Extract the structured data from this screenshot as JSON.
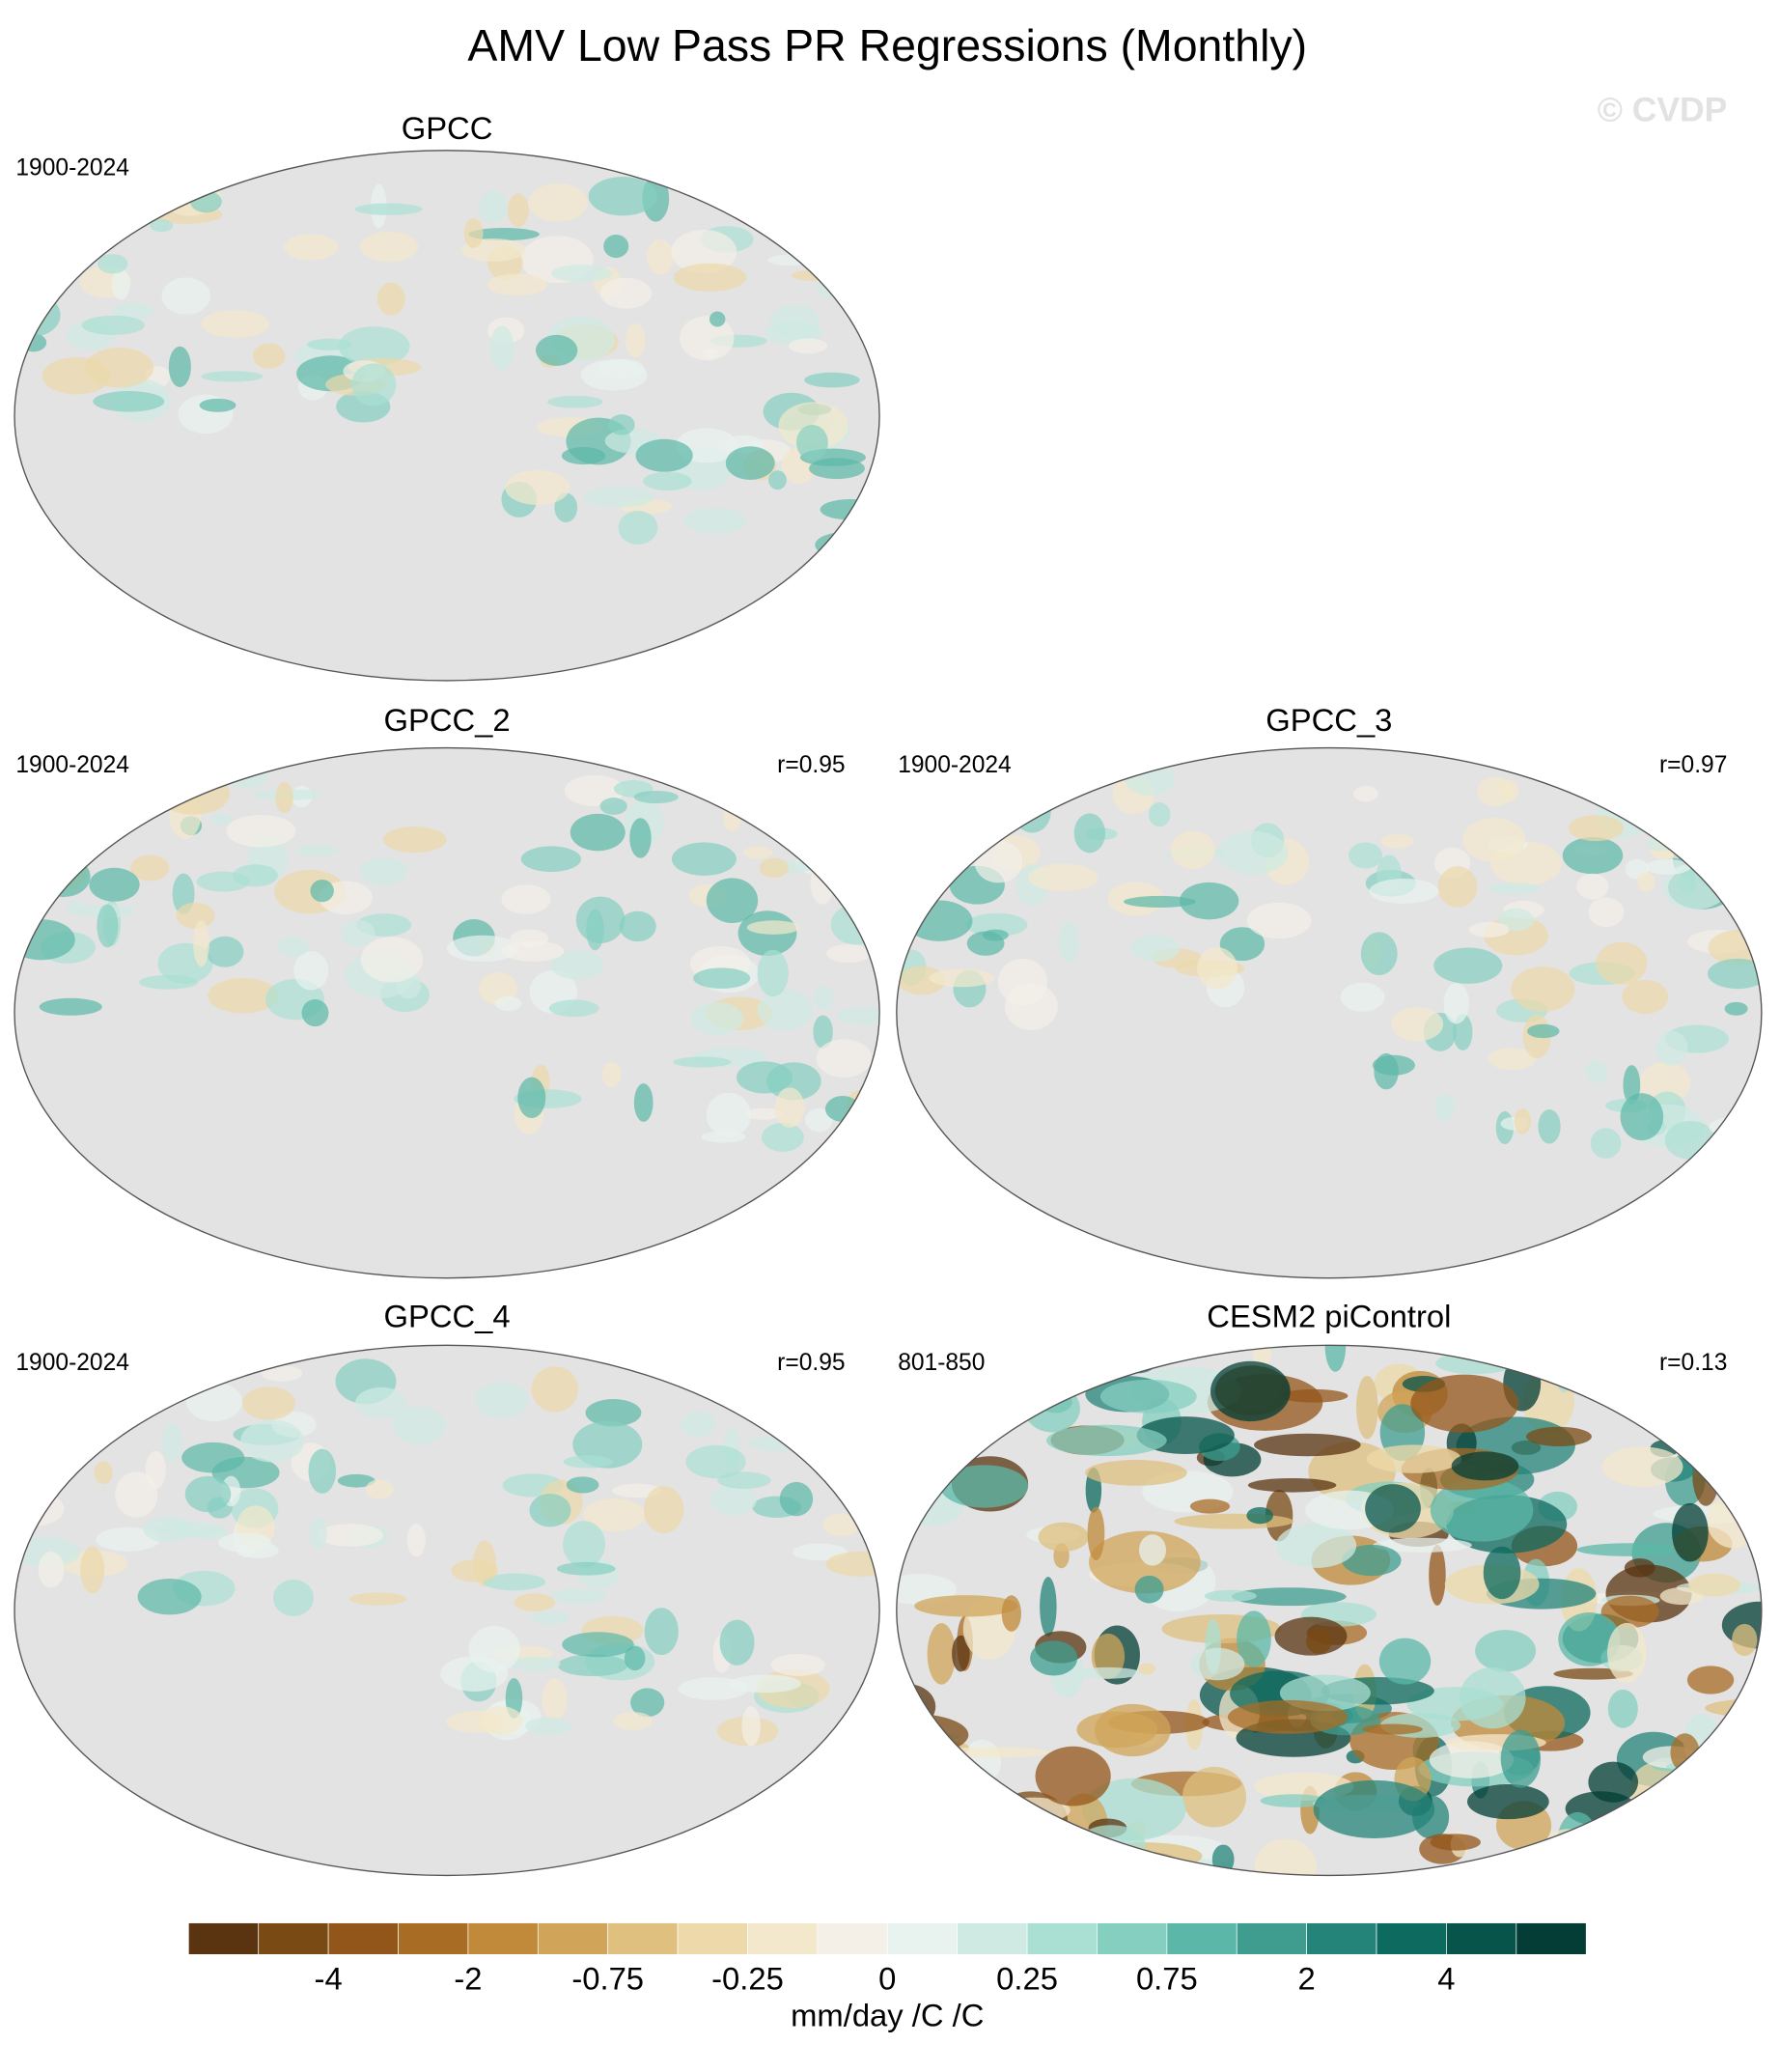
{
  "title": "AMV Low Pass PR Regressions (Monthly)",
  "watermark": "© CVDP",
  "panels": [
    {
      "title": "GPCC",
      "period": "1900-2024"
    },
    {
      "title": "GPCC_2",
      "period": "1900-2024",
      "r": "r=0.95"
    },
    {
      "title": "GPCC_3",
      "period": "1900-2024",
      "r": "r=0.97"
    },
    {
      "title": "GPCC_4",
      "period": "1900-2024",
      "r": "r=0.95"
    },
    {
      "title": "CESM2 piControl",
      "period": "801-850",
      "r": "r=0.13"
    }
  ],
  "colorbar": {
    "colors": [
      "#5a3411",
      "#7a4a14",
      "#93561a",
      "#a86c25",
      "#c08a3a",
      "#d0a55a",
      "#dfc07f",
      "#edd9aa",
      "#f4e8cc",
      "#f4f0e8",
      "#e8f2ef",
      "#cfeae3",
      "#aadfd3",
      "#85cfc0",
      "#5bb8a8",
      "#3f9d90",
      "#24847a",
      "#0c6a5e",
      "#06544a",
      "#033d35"
    ],
    "ticks": [
      -4,
      -2,
      -0.75,
      -0.25,
      0,
      0.25,
      0.75,
      2,
      4
    ],
    "label": "mm/day /C /C"
  }
}
